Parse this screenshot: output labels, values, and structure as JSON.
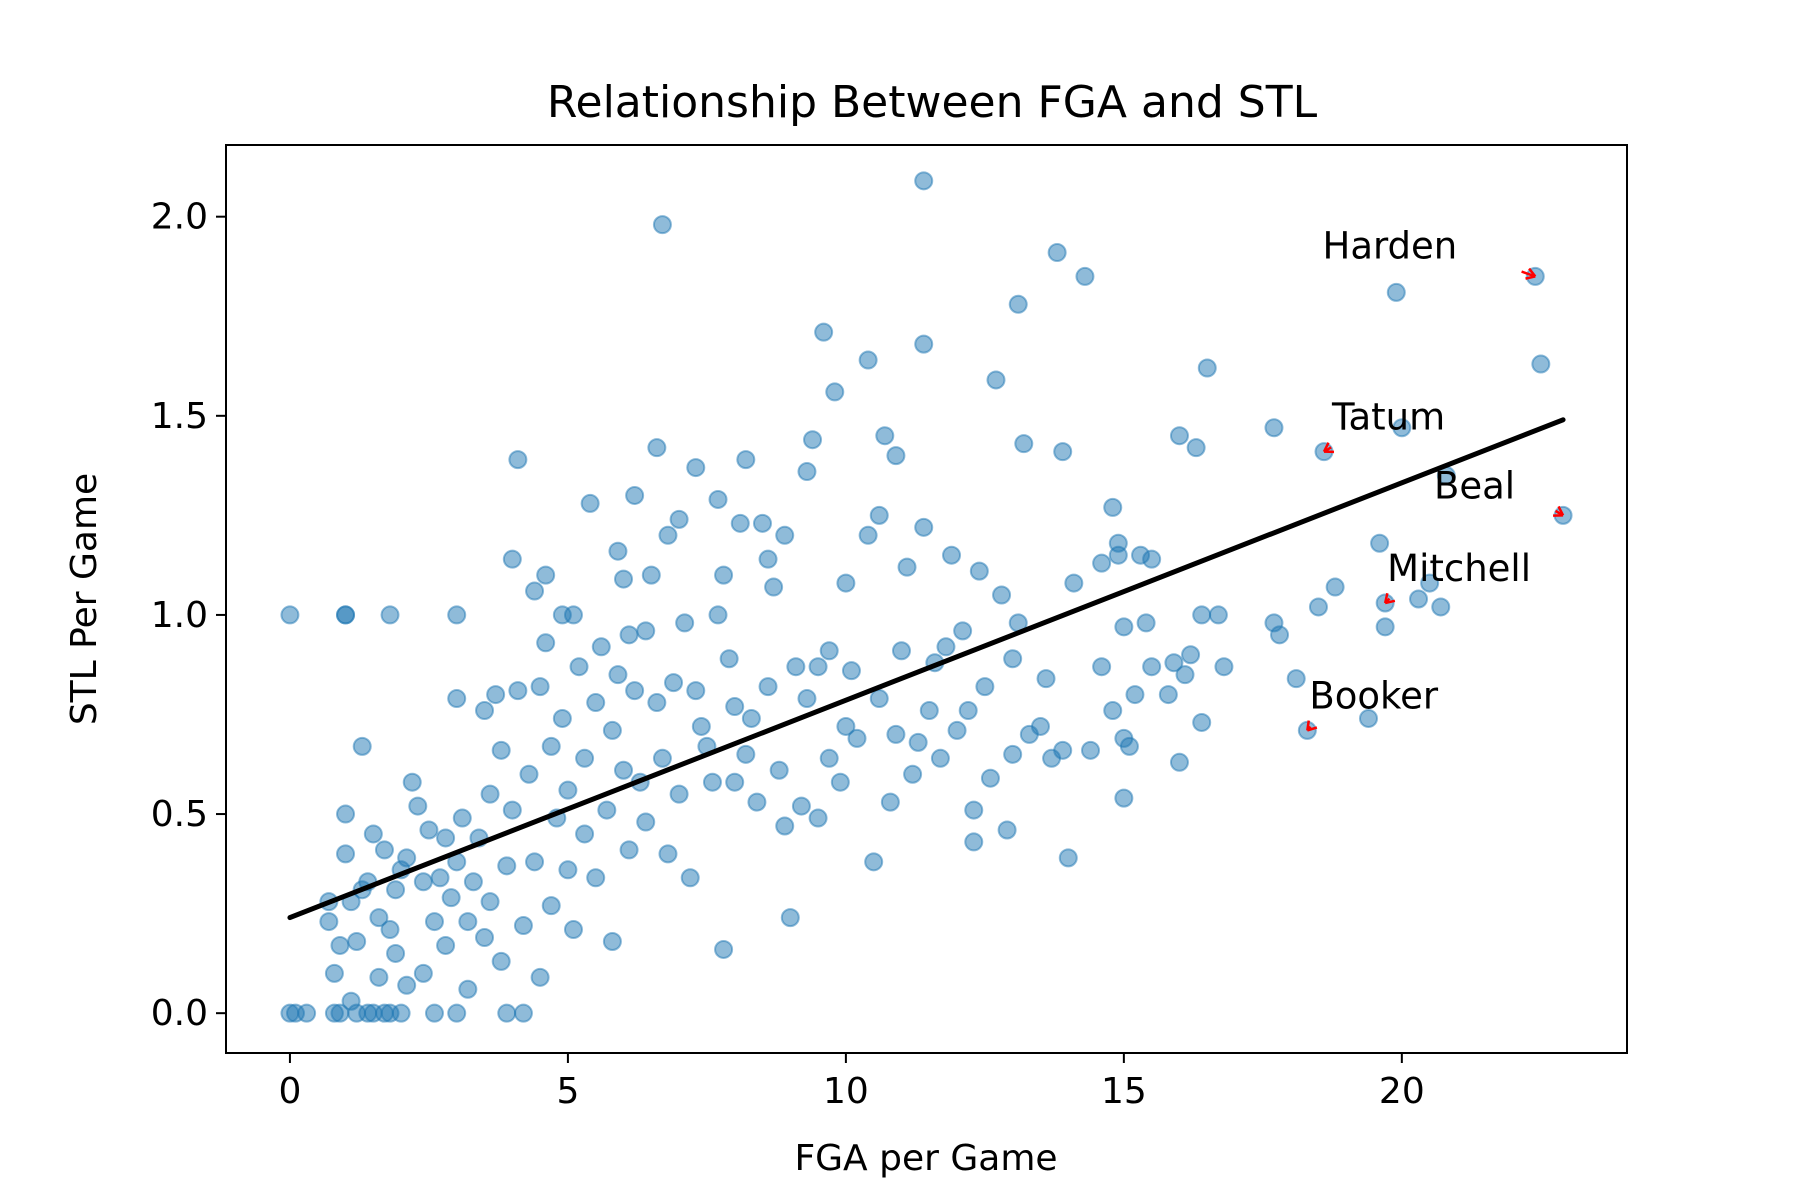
{
  "chart_data": {
    "type": "scatter",
    "title": "Relationship Between FGA and STL",
    "xlabel": "FGA per Game",
    "ylabel": "STL Per Game",
    "xlim": [
      -1.15,
      24.05
    ],
    "ylim": [
      -0.1,
      2.18
    ],
    "xticks": [
      0,
      5,
      10,
      15,
      20
    ],
    "yticks": [
      0.0,
      0.5,
      1.0,
      1.5,
      2.0
    ],
    "grid": false,
    "legend": "none",
    "colors": {
      "points": "#1f77b4",
      "fit_line": "#000000",
      "arrows": "#ff0000"
    },
    "fit_line": {
      "x": [
        0,
        22.9
      ],
      "y": [
        0.24,
        1.49
      ]
    },
    "annotations": [
      {
        "label": "Harden",
        "x": 22.4,
        "y": 1.85
      },
      {
        "label": "Tatum",
        "x": 18.6,
        "y": 1.41
      },
      {
        "label": "Beal",
        "x": 22.9,
        "y": 1.25
      },
      {
        "label": "Mitchell",
        "x": 19.7,
        "y": 1.03
      },
      {
        "label": "Booker",
        "x": 18.3,
        "y": 0.71
      }
    ],
    "series": [
      {
        "points": [
          [
            0,
            0
          ],
          [
            0.1,
            0
          ],
          [
            0.3,
            0
          ],
          [
            0,
            1
          ],
          [
            1,
            1
          ],
          [
            1,
            1
          ],
          [
            1.8,
            1
          ],
          [
            3,
            1
          ],
          [
            1,
            0.5
          ],
          [
            1,
            0.4
          ],
          [
            1.3,
            0.67
          ],
          [
            0.7,
            0.28
          ],
          [
            0.7,
            0.23
          ],
          [
            0.8,
            0
          ],
          [
            0.8,
            0.1
          ],
          [
            0.9,
            0.17
          ],
          [
            0.9,
            0
          ],
          [
            1.1,
            0.28
          ],
          [
            1.1,
            0.03
          ],
          [
            1.2,
            0
          ],
          [
            1.2,
            0.18
          ],
          [
            1.3,
            0.31
          ],
          [
            1.4,
            0
          ],
          [
            1.4,
            0.33
          ],
          [
            1.5,
            0
          ],
          [
            1.5,
            0.45
          ],
          [
            1.6,
            0.09
          ],
          [
            1.6,
            0.24
          ],
          [
            1.7,
            0
          ],
          [
            1.7,
            0.41
          ],
          [
            1.8,
            0.21
          ],
          [
            1.8,
            0
          ],
          [
            1.9,
            0.31
          ],
          [
            1.9,
            0.15
          ],
          [
            2,
            0
          ],
          [
            2,
            0.36
          ],
          [
            2.1,
            0.07
          ],
          [
            2.1,
            0.39
          ],
          [
            2.2,
            0.58
          ],
          [
            2.3,
            0.52
          ],
          [
            2.4,
            0.33
          ],
          [
            2.4,
            0.1
          ],
          [
            2.5,
            0.46
          ],
          [
            2.6,
            0.23
          ],
          [
            2.6,
            0
          ],
          [
            2.7,
            0.34
          ],
          [
            2.8,
            0.17
          ],
          [
            2.8,
            0.44
          ],
          [
            2.9,
            0.29
          ],
          [
            3,
            0.79
          ],
          [
            3,
            0.38
          ],
          [
            3,
            0
          ],
          [
            3.1,
            0.49
          ],
          [
            3.2,
            0.23
          ],
          [
            3.2,
            0.06
          ],
          [
            3.3,
            0.33
          ],
          [
            3.4,
            0.44
          ],
          [
            3.5,
            0.76
          ],
          [
            3.5,
            0.19
          ],
          [
            3.6,
            0.55
          ],
          [
            3.6,
            0.28
          ],
          [
            3.7,
            0.8
          ],
          [
            3.8,
            0.66
          ],
          [
            3.8,
            0.13
          ],
          [
            3.9,
            0.37
          ],
          [
            3.9,
            0
          ],
          [
            4,
            0.51
          ],
          [
            4,
            1.14
          ],
          [
            4.1,
            1.39
          ],
          [
            4.1,
            0.81
          ],
          [
            4.2,
            0.22
          ],
          [
            4.2,
            0
          ],
          [
            4.3,
            0.6
          ],
          [
            4.4,
            1.06
          ],
          [
            4.4,
            0.38
          ],
          [
            4.5,
            0.82
          ],
          [
            4.5,
            0.09
          ],
          [
            4.6,
            1.1
          ],
          [
            4.6,
            0.93
          ],
          [
            4.7,
            0.67
          ],
          [
            4.7,
            0.27
          ],
          [
            4.8,
            0.49
          ],
          [
            4.9,
            1
          ],
          [
            4.9,
            0.74
          ],
          [
            5,
            0.36
          ],
          [
            5,
            0.56
          ],
          [
            5.1,
            1
          ],
          [
            5.1,
            0.21
          ],
          [
            5.2,
            0.87
          ],
          [
            5.3,
            0.64
          ],
          [
            5.3,
            0.45
          ],
          [
            5.4,
            1.28
          ],
          [
            5.5,
            0.78
          ],
          [
            5.5,
            0.34
          ],
          [
            5.6,
            0.92
          ],
          [
            5.7,
            0.51
          ],
          [
            5.8,
            0.71
          ],
          [
            5.8,
            0.18
          ],
          [
            5.9,
            1.16
          ],
          [
            5.9,
            0.85
          ],
          [
            6,
            1.09
          ],
          [
            6,
            0.61
          ],
          [
            6.1,
            0.95
          ],
          [
            6.1,
            0.41
          ],
          [
            6.2,
            1.3
          ],
          [
            6.2,
            0.81
          ],
          [
            6.3,
            0.58
          ],
          [
            6.4,
            0.96
          ],
          [
            6.4,
            0.48
          ],
          [
            6.5,
            1.1
          ],
          [
            6.6,
            0.78
          ],
          [
            6.6,
            1.42
          ],
          [
            6.7,
            0.64
          ],
          [
            6.7,
            1.98
          ],
          [
            6.8,
            1.2
          ],
          [
            6.8,
            0.4
          ],
          [
            6.9,
            0.83
          ],
          [
            7,
            1.24
          ],
          [
            7,
            0.55
          ],
          [
            7.1,
            0.98
          ],
          [
            7.2,
            0.34
          ],
          [
            7.3,
            0.81
          ],
          [
            7.3,
            1.37
          ],
          [
            7.4,
            0.72
          ],
          [
            7.5,
            0.67
          ],
          [
            7.6,
            0.58
          ],
          [
            7.7,
            1.29
          ],
          [
            7.7,
            1
          ],
          [
            7.8,
            1.1
          ],
          [
            7.8,
            0.16
          ],
          [
            7.9,
            0.89
          ],
          [
            8,
            0.77
          ],
          [
            8,
            0.58
          ],
          [
            8.1,
            1.23
          ],
          [
            8.2,
            0.65
          ],
          [
            8.2,
            1.39
          ],
          [
            8.3,
            0.74
          ],
          [
            8.4,
            0.53
          ],
          [
            8.5,
            1.23
          ],
          [
            8.6,
            0.82
          ],
          [
            8.6,
            1.14
          ],
          [
            8.7,
            1.07
          ],
          [
            8.8,
            0.61
          ],
          [
            8.9,
            0.47
          ],
          [
            8.9,
            1.2
          ],
          [
            9,
            0.24
          ],
          [
            9.1,
            0.87
          ],
          [
            9.2,
            0.52
          ],
          [
            9.3,
            0.79
          ],
          [
            9.3,
            1.36
          ],
          [
            9.4,
            1.44
          ],
          [
            9.5,
            0.49
          ],
          [
            9.5,
            0.87
          ],
          [
            9.6,
            1.71
          ],
          [
            9.7,
            0.91
          ],
          [
            9.7,
            0.64
          ],
          [
            9.8,
            1.56
          ],
          [
            9.9,
            0.58
          ],
          [
            10,
            0.72
          ],
          [
            10,
            1.08
          ],
          [
            10.1,
            0.86
          ],
          [
            10.2,
            0.69
          ],
          [
            10.4,
            1.64
          ],
          [
            10.4,
            1.2
          ],
          [
            10.5,
            0.38
          ],
          [
            10.6,
            0.79
          ],
          [
            10.6,
            1.25
          ],
          [
            10.7,
            1.45
          ],
          [
            10.8,
            0.53
          ],
          [
            10.9,
            0.7
          ],
          [
            10.9,
            1.4
          ],
          [
            11,
            0.91
          ],
          [
            11.1,
            1.12
          ],
          [
            11.2,
            0.6
          ],
          [
            11.3,
            0.68
          ],
          [
            11.4,
            1.68
          ],
          [
            11.4,
            2.09
          ],
          [
            11.4,
            1.22
          ],
          [
            11.5,
            0.76
          ],
          [
            11.6,
            0.88
          ],
          [
            11.7,
            0.64
          ],
          [
            11.8,
            0.92
          ],
          [
            11.9,
            1.15
          ],
          [
            12,
            0.71
          ],
          [
            12.1,
            0.96
          ],
          [
            12.2,
            0.76
          ],
          [
            12.3,
            0.43
          ],
          [
            12.3,
            0.51
          ],
          [
            12.4,
            1.11
          ],
          [
            12.5,
            0.82
          ],
          [
            12.6,
            0.59
          ],
          [
            12.7,
            1.59
          ],
          [
            12.8,
            1.05
          ],
          [
            12.9,
            0.46
          ],
          [
            13,
            0.65
          ],
          [
            13,
            0.89
          ],
          [
            13.1,
            0.98
          ],
          [
            13.1,
            1.78
          ],
          [
            13.2,
            1.43
          ],
          [
            13.3,
            0.7
          ],
          [
            13.5,
            0.72
          ],
          [
            13.6,
            0.84
          ],
          [
            13.7,
            0.64
          ],
          [
            13.8,
            1.91
          ],
          [
            13.9,
            0.66
          ],
          [
            13.9,
            1.41
          ],
          [
            14,
            0.39
          ],
          [
            14.1,
            1.08
          ],
          [
            14.3,
            1.85
          ],
          [
            14.4,
            0.66
          ],
          [
            14.6,
            1.13
          ],
          [
            14.6,
            0.87
          ],
          [
            14.8,
            1.27
          ],
          [
            14.8,
            0.76
          ],
          [
            14.9,
            1.18
          ],
          [
            14.9,
            1.15
          ],
          [
            15,
            0.97
          ],
          [
            15,
            0.69
          ],
          [
            15,
            0.54
          ],
          [
            15.1,
            0.67
          ],
          [
            15.2,
            0.8
          ],
          [
            15.3,
            1.15
          ],
          [
            15.4,
            0.98
          ],
          [
            15.5,
            1.14
          ],
          [
            15.5,
            0.87
          ],
          [
            15.8,
            0.8
          ],
          [
            15.9,
            0.88
          ],
          [
            16,
            1.45
          ],
          [
            16,
            0.63
          ],
          [
            16.1,
            0.85
          ],
          [
            16.2,
            0.9
          ],
          [
            16.3,
            1.42
          ],
          [
            16.4,
            0.73
          ],
          [
            16.4,
            1
          ],
          [
            16.5,
            1.62
          ],
          [
            16.7,
            1
          ],
          [
            16.8,
            0.87
          ],
          [
            17.7,
            1.47
          ],
          [
            17.7,
            0.98
          ],
          [
            17.8,
            0.95
          ],
          [
            18.1,
            0.84
          ],
          [
            18.3,
            0.71
          ],
          [
            18.5,
            1.02
          ],
          [
            18.6,
            1.41
          ],
          [
            18.8,
            1.07
          ],
          [
            19.4,
            0.74
          ],
          [
            19.6,
            1.18
          ],
          [
            19.7,
            1.03
          ],
          [
            19.7,
            0.97
          ],
          [
            19.9,
            1.81
          ],
          [
            20,
            1.47
          ],
          [
            20.3,
            1.04
          ],
          [
            20.5,
            1.08
          ],
          [
            20.7,
            1.02
          ],
          [
            20.8,
            1.35
          ],
          [
            22.4,
            1.85
          ],
          [
            22.5,
            1.63
          ],
          [
            22.9,
            1.25
          ]
        ]
      }
    ]
  }
}
